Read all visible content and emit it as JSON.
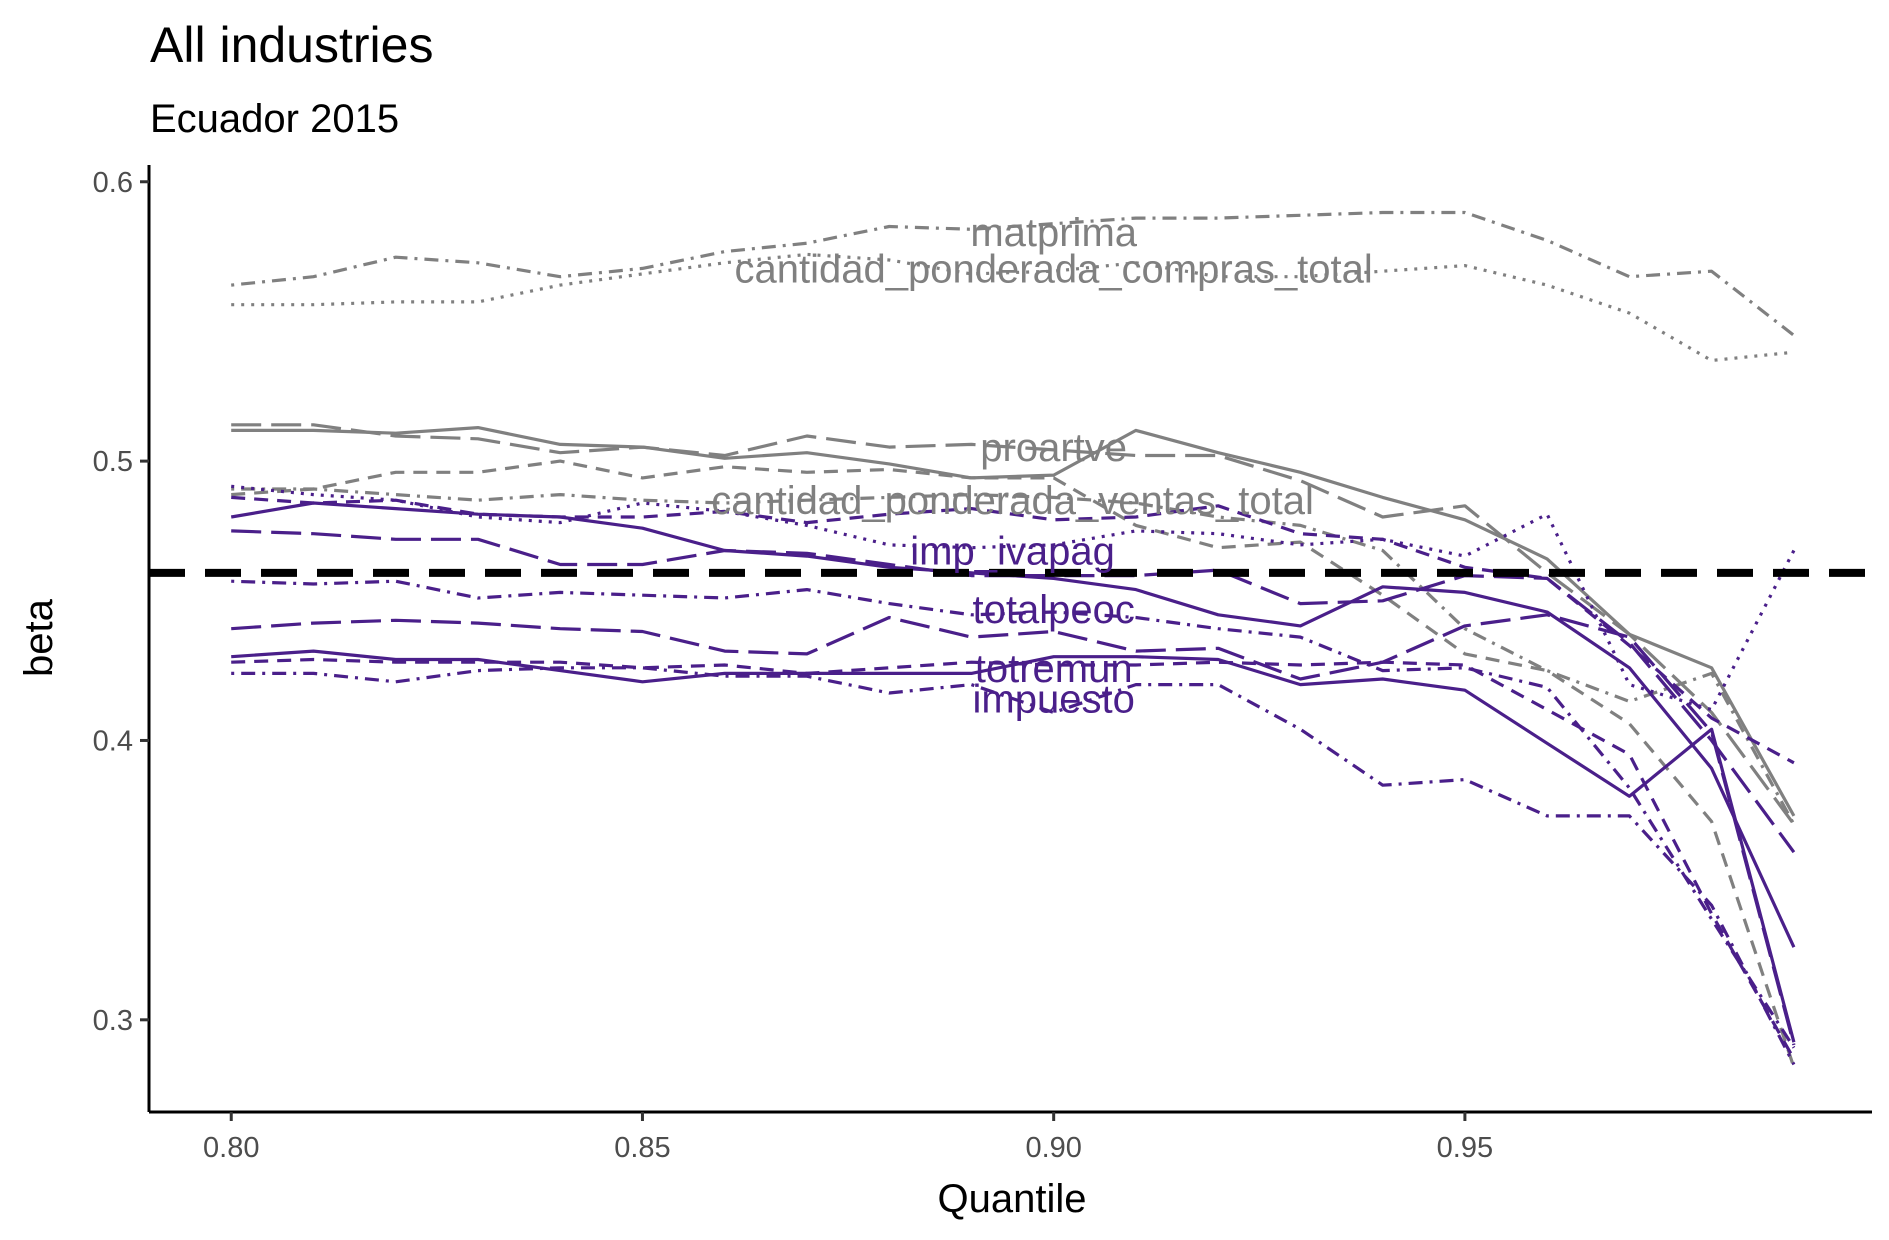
{
  "chart_data": {
    "type": "line",
    "title": "All industries",
    "subtitle": "Ecuador 2015",
    "xlabel": "Quantile",
    "ylabel": "beta",
    "xlim": [
      0.79,
      0.9995
    ],
    "ylim": [
      0.267,
      0.606
    ],
    "x_ticks": [
      0.8,
      0.85,
      0.9,
      0.95
    ],
    "x_tick_labels": [
      "0.80",
      "0.85",
      "0.90",
      "0.95"
    ],
    "y_ticks": [
      0.3,
      0.4,
      0.5,
      0.6
    ],
    "y_tick_labels": [
      "0.3",
      "0.4",
      "0.5",
      "0.6"
    ],
    "grid": false,
    "legend": "none",
    "reference_line": {
      "y": 0.46,
      "style": "dashed",
      "color": "#000000"
    },
    "colors": {
      "gray": "#808080",
      "purple": "#4a1f8a"
    },
    "x": [
      0.8,
      0.81,
      0.82,
      0.83,
      0.84,
      0.85,
      0.86,
      0.87,
      0.88,
      0.89,
      0.9,
      0.91,
      0.92,
      0.93,
      0.94,
      0.95,
      0.96,
      0.97,
      0.98,
      0.99
    ],
    "series": [
      {
        "name": "matprima",
        "color": "#808080",
        "dash": "dotdash",
        "label_at": [
          0.9,
          0.582
        ],
        "values": [
          0.563,
          0.566,
          0.573,
          0.571,
          0.566,
          0.569,
          0.575,
          0.578,
          0.584,
          0.583,
          0.585,
          0.587,
          0.587,
          0.588,
          0.589,
          0.589,
          0.579,
          0.566,
          0.568,
          0.545
        ]
      },
      {
        "name": "cantidad_ponderada_compras_total",
        "color": "#808080",
        "dash": "dotted",
        "label_at": [
          0.9,
          0.569
        ],
        "values": [
          0.556,
          0.556,
          0.557,
          0.557,
          0.563,
          0.567,
          0.571,
          0.574,
          0.572,
          0.567,
          0.568,
          0.571,
          0.566,
          0.566,
          0.568,
          0.57,
          0.563,
          0.553,
          0.536,
          0.539
        ]
      },
      {
        "name": "proartve",
        "color": "#808080",
        "dash": "longdash",
        "label_at": [
          0.9,
          0.505
        ],
        "values": [
          0.513,
          0.513,
          0.509,
          0.508,
          0.503,
          0.505,
          0.502,
          0.509,
          0.505,
          0.506,
          0.504,
          0.502,
          0.502,
          0.493,
          0.48,
          0.484,
          0.46,
          0.438,
          0.41,
          0.37
        ]
      },
      {
        "name": "",
        "color": "#808080",
        "dash": "solid",
        "values": [
          0.511,
          0.511,
          0.51,
          0.512,
          0.506,
          0.505,
          0.501,
          0.503,
          0.499,
          0.494,
          0.495,
          0.511,
          0.503,
          0.496,
          0.487,
          0.479,
          0.465,
          0.438,
          0.426,
          0.373
        ]
      },
      {
        "name": "cantidad_ponderada_ventas_total",
        "color": "#808080",
        "dash": "dashed",
        "label_at": [
          0.895,
          0.486
        ],
        "values": [
          0.488,
          0.49,
          0.496,
          0.496,
          0.5,
          0.494,
          0.498,
          0.496,
          0.497,
          0.494,
          0.494,
          0.477,
          0.469,
          0.471,
          0.452,
          0.431,
          0.425,
          0.406,
          0.371,
          0.283
        ]
      },
      {
        "name": "",
        "color": "#808080",
        "dash": "dotdash",
        "values": [
          0.49,
          0.49,
          0.488,
          0.486,
          0.488,
          0.486,
          0.485,
          0.486,
          0.487,
          0.488,
          0.487,
          0.485,
          0.48,
          0.477,
          0.468,
          0.44,
          0.425,
          0.414,
          0.424,
          0.37
        ]
      },
      {
        "name": "imp_ivapag",
        "color": "#4a1f8a",
        "dash": "dotted",
        "label_at": [
          0.895,
          0.468
        ],
        "values": [
          0.491,
          0.488,
          0.486,
          0.48,
          0.478,
          0.485,
          0.482,
          0.477,
          0.47,
          0.469,
          0.47,
          0.475,
          0.474,
          0.47,
          0.472,
          0.466,
          0.481,
          0.42,
          0.411,
          0.468
        ]
      },
      {
        "name": "",
        "color": "#4a1f8a",
        "dash": "dashed",
        "values": [
          0.487,
          0.485,
          0.486,
          0.481,
          0.48,
          0.48,
          0.482,
          0.478,
          0.481,
          0.483,
          0.479,
          0.48,
          0.484,
          0.474,
          0.472,
          0.462,
          0.458,
          0.434,
          0.408,
          0.392
        ]
      },
      {
        "name": "",
        "color": "#4a1f8a",
        "dash": "solid",
        "values": [
          0.48,
          0.485,
          0.483,
          0.481,
          0.48,
          0.476,
          0.468,
          0.466,
          0.462,
          0.46,
          0.458,
          0.454,
          0.445,
          0.441,
          0.455,
          0.453,
          0.446,
          0.426,
          0.39,
          0.326
        ]
      },
      {
        "name": "",
        "color": "#4a1f8a",
        "dash": "longdash",
        "values": [
          0.475,
          0.474,
          0.472,
          0.472,
          0.463,
          0.463,
          0.468,
          0.467,
          0.463,
          0.459,
          0.459,
          0.459,
          0.461,
          0.449,
          0.45,
          0.459,
          0.458,
          0.435,
          0.4,
          0.36
        ]
      },
      {
        "name": "totalpeoc",
        "color": "#4a1f8a",
        "dash": "dotdash",
        "label_at": [
          0.9,
          0.447
        ],
        "values": [
          0.457,
          0.456,
          0.457,
          0.451,
          0.453,
          0.452,
          0.451,
          0.454,
          0.449,
          0.445,
          0.446,
          0.444,
          0.44,
          0.437,
          0.425,
          0.426,
          0.419,
          0.383,
          0.336,
          0.29
        ]
      },
      {
        "name": "totremun",
        "color": "#4a1f8a",
        "dash": "longdash",
        "label_at": [
          0.9,
          0.426
        ],
        "values": [
          0.44,
          0.442,
          0.443,
          0.442,
          0.44,
          0.439,
          0.432,
          0.431,
          0.444,
          0.437,
          0.439,
          0.432,
          0.433,
          0.422,
          0.428,
          0.441,
          0.445,
          0.437,
          0.403,
          0.291
        ]
      },
      {
        "name": "impuesto",
        "color": "#4a1f8a",
        "dash": "solid",
        "label_at": [
          0.9,
          0.415
        ],
        "values": [
          0.43,
          0.432,
          0.429,
          0.429,
          0.425,
          0.421,
          0.424,
          0.424,
          0.424,
          0.424,
          0.43,
          0.43,
          0.429,
          0.42,
          0.422,
          0.418,
          0.399,
          0.38,
          0.404,
          0.292
        ]
      },
      {
        "name": "",
        "color": "#4a1f8a",
        "dash": "dotdash",
        "values": [
          0.424,
          0.424,
          0.421,
          0.425,
          0.426,
          0.426,
          0.423,
          0.423,
          0.417,
          0.42,
          0.41,
          0.42,
          0.42,
          0.404,
          0.384,
          0.386,
          0.373,
          0.373,
          0.341,
          0.284
        ]
      },
      {
        "name": "",
        "color": "#4a1f8a",
        "dash": "dashed",
        "values": [
          0.428,
          0.429,
          0.428,
          0.428,
          0.428,
          0.426,
          0.427,
          0.424,
          0.426,
          0.428,
          0.427,
          0.427,
          0.428,
          0.427,
          0.428,
          0.427,
          0.411,
          0.395,
          0.338,
          0.286
        ]
      }
    ]
  }
}
